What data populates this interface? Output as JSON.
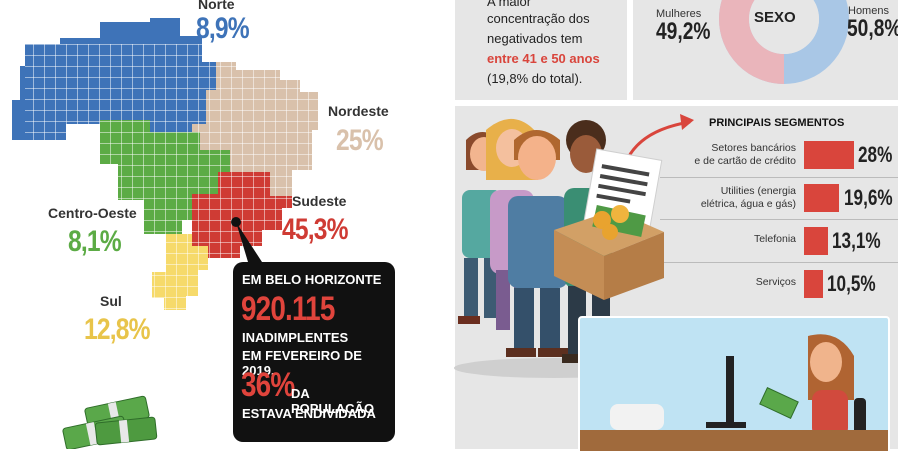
{
  "regions": {
    "norte": {
      "name": "Norte",
      "pct": "8,9%"
    },
    "nordeste": {
      "name": "Nordeste",
      "pct": "25%"
    },
    "sudeste": {
      "name": "Sudeste",
      "pct": "45,3%"
    },
    "centro_oeste": {
      "name": "Centro-Oeste",
      "pct": "8,1%"
    },
    "sul": {
      "name": "Sul",
      "pct": "12,8%"
    }
  },
  "colors": {
    "norte": "#3e73b8",
    "nordeste": "#d9c1ab",
    "sudeste": "#cf3b34",
    "centro_oeste": "#5cab45",
    "sul": "#f6da6b",
    "accent": "#d9453c"
  },
  "callout": {
    "line1": "EM BELO HORIZONTE",
    "number": "920.115",
    "line2": "INADIMPLENTES",
    "line3": "EM FEVEREIRO DE 2019,",
    "pct": "36%",
    "line4": "DA POPULAÇÃO",
    "line5": "ESTAVA ENDIVIDADA"
  },
  "age_panel": {
    "line1": "A maior",
    "line2": "concentração dos",
    "line3": "negativados tem",
    "highlight": "entre 41 e 50 anos",
    "line4": "(19,8% do total)."
  },
  "sex_panel": {
    "title": "SEXO",
    "women_label": "Mulheres",
    "women_pct": "49,2%",
    "men_label": "Homens",
    "men_pct": "50,8%"
  },
  "segments": {
    "title": "PRINCIPAIS SEGMENTOS",
    "items": [
      {
        "label_1": "Setores bancários",
        "label_2": "e de cartão de crédito",
        "value": "28%",
        "share": 28
      },
      {
        "label_1": "Utilities (energia",
        "label_2": "elétrica, água e gás)",
        "value": "19,6%",
        "share": 19.6
      },
      {
        "label_1": "Telefonia",
        "label_2": "",
        "value": "13,1%",
        "share": 13.1
      },
      {
        "label_1": "Serviços",
        "label_2": "",
        "value": "10,5%",
        "share": 10.5
      }
    ]
  }
}
